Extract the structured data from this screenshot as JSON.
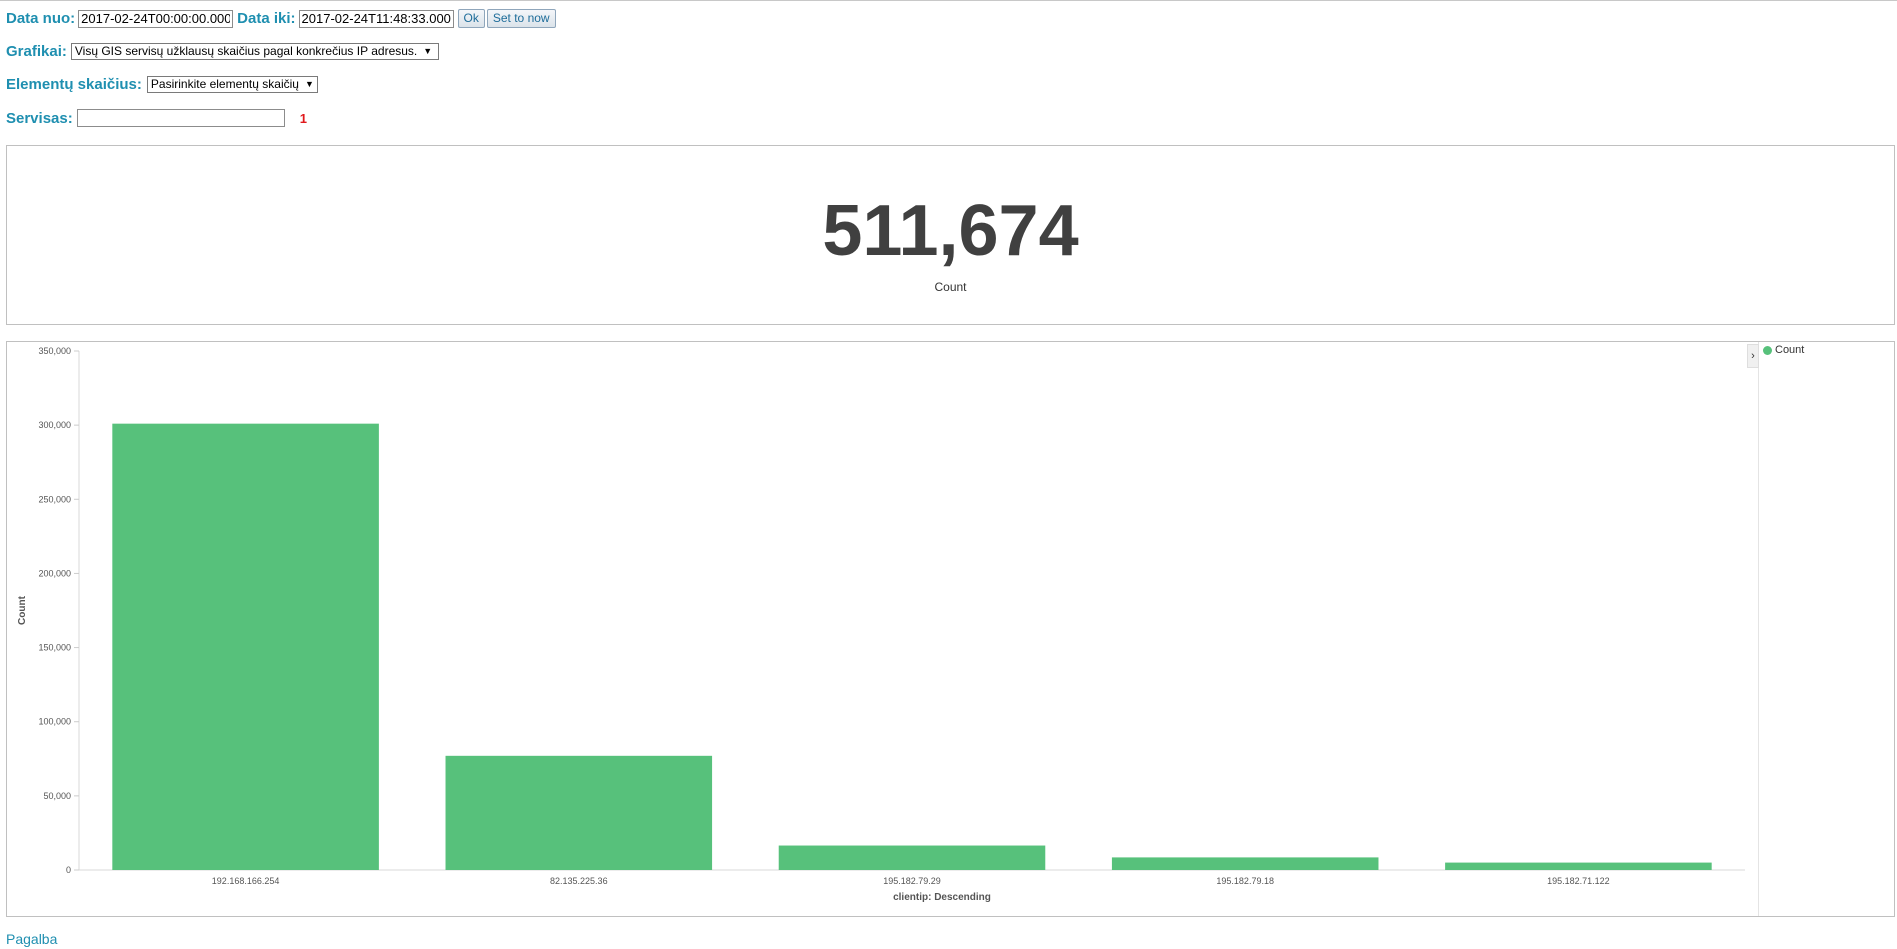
{
  "filters": {
    "date_from_label": "Data nuo:",
    "date_from_value": "2017-02-24T00:00:00.000",
    "date_to_label": "Data iki:",
    "date_to_value": "2017-02-24T11:48:33.000",
    "ok_label": "Ok",
    "set_now_label": "Set to now",
    "charts_label": "Grafikai:",
    "charts_selected": "Visų GIS servisų užklausų skaičius pagal konkrečius IP adresus.",
    "elements_label": "Elementų skaičius:",
    "elements_selected": "Pasirinkite elementų skaičių",
    "service_label": "Servisas:",
    "service_value": "",
    "service_count": "1"
  },
  "metric": {
    "value": "511,674",
    "label": "Count"
  },
  "chart_data": {
    "type": "bar",
    "categories": [
      "192.168.166.254",
      "82.135.225.36",
      "195.182.79.29",
      "195.182.79.18",
      "195.182.71.122"
    ],
    "series": [
      {
        "name": "Count",
        "values": [
          301000,
          77000,
          16500,
          8500,
          5000
        ]
      }
    ],
    "ylabel": "Count",
    "xlabel": "clientip: Descending",
    "ylim": [
      0,
      350000
    ],
    "yticks": [
      "0",
      "50,000",
      "100,000",
      "150,000",
      "200,000",
      "250,000",
      "300,000",
      "350,000"
    ],
    "legend_placement": "right",
    "color": "#57c17b"
  },
  "footer": {
    "help_label": "Pagalba"
  }
}
